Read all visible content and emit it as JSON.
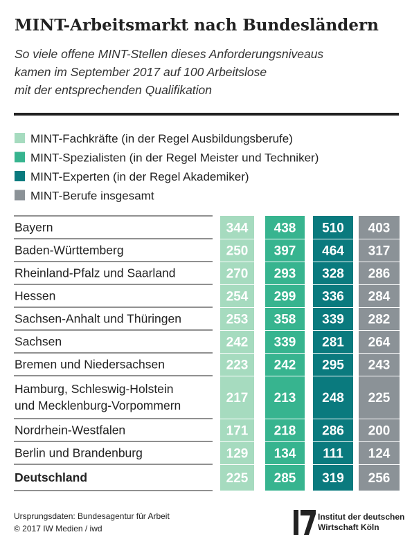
{
  "header": {
    "title": "MINT-Arbeitsmarkt nach Bundesländern",
    "subtitle": [
      "So viele offene MINT-Stellen dieses Anforderungsniveaus",
      "kamen im September 2017 auf 100 Arbeitslose",
      "mit der entsprechenden Qualifikation"
    ]
  },
  "legend": [
    {
      "label": "MINT-Fachkräfte (in der Regel Ausbildungsberufe)",
      "color": "#a6dbbf"
    },
    {
      "label": "MINT-Spezialisten (in der Regel Meister und Techniker)",
      "color": "#37b48f"
    },
    {
      "label": "MINT-Experten (in der Regel Akademiker)",
      "color": "#0a7a7e"
    },
    {
      "label": "MINT-Berufe insgesamt",
      "color": "#8b9297"
    }
  ],
  "table": {
    "rows": [
      {
        "lines": [
          "Bayern"
        ],
        "values": [
          344,
          438,
          510,
          403
        ]
      },
      {
        "lines": [
          "Baden-Württemberg"
        ],
        "values": [
          250,
          397,
          464,
          317
        ]
      },
      {
        "lines": [
          "Rheinland-Pfalz und Saarland"
        ],
        "values": [
          270,
          293,
          328,
          286
        ]
      },
      {
        "lines": [
          "Hessen"
        ],
        "values": [
          254,
          299,
          336,
          284
        ]
      },
      {
        "lines": [
          "Sachsen-Anhalt und Thüringen"
        ],
        "values": [
          253,
          358,
          339,
          282
        ]
      },
      {
        "lines": [
          "Sachsen"
        ],
        "values": [
          242,
          339,
          281,
          264
        ]
      },
      {
        "lines": [
          "Bremen und Niedersachsen"
        ],
        "values": [
          223,
          242,
          295,
          243
        ]
      },
      {
        "lines": [
          "Hamburg, Schleswig-Holstein",
          "und Mecklenburg-Vorpommern"
        ],
        "values": [
          217,
          213,
          248,
          225
        ]
      },
      {
        "lines": [
          "Nordrhein-Westfalen"
        ],
        "values": [
          171,
          218,
          286,
          200
        ]
      },
      {
        "lines": [
          "Berlin und Brandenburg"
        ],
        "values": [
          129,
          134,
          111,
          124
        ]
      },
      {
        "lines": [
          "Deutschland"
        ],
        "values": [
          225,
          285,
          319,
          256
        ]
      }
    ]
  },
  "footer": {
    "source": [
      "Ursprungsdaten: Bundesagentur für Arbeit",
      "© 2017 IW Medien / iwd"
    ],
    "logo": [
      "Institut der deutschen",
      "Wirtschaft Köln"
    ]
  }
}
